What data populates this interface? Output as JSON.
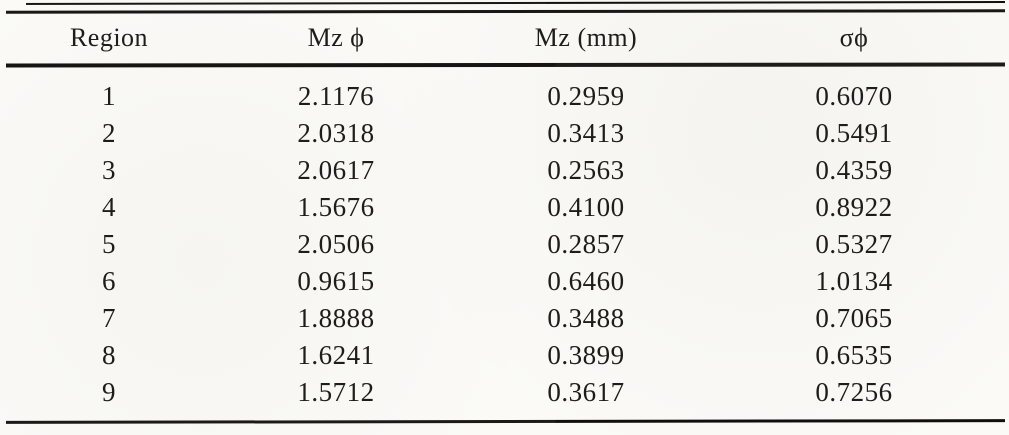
{
  "table": {
    "columns": [
      "Region",
      "Mz ϕ",
      "Mz (mm)",
      "σϕ"
    ],
    "rows": [
      [
        "1",
        "2.1176",
        "0.2959",
        "0.6070"
      ],
      [
        "2",
        "2.0318",
        "0.3413",
        "0.5491"
      ],
      [
        "3",
        "2.0617",
        "0.2563",
        "0.4359"
      ],
      [
        "4",
        "1.5676",
        "0.4100",
        "0.8922"
      ],
      [
        "5",
        "2.0506",
        "0.2857",
        "0.5327"
      ],
      [
        "6",
        "0.9615",
        "0.6460",
        "1.0134"
      ],
      [
        "7",
        "1.8888",
        "0.3488",
        "0.7065"
      ],
      [
        "8",
        "1.6241",
        "0.3899",
        "0.6535"
      ],
      [
        "9",
        "1.5712",
        "0.3617",
        "0.7256"
      ]
    ]
  },
  "colors": {
    "background": "#fbfaf7",
    "text": "#1e1d1b",
    "rule": "#191816"
  }
}
